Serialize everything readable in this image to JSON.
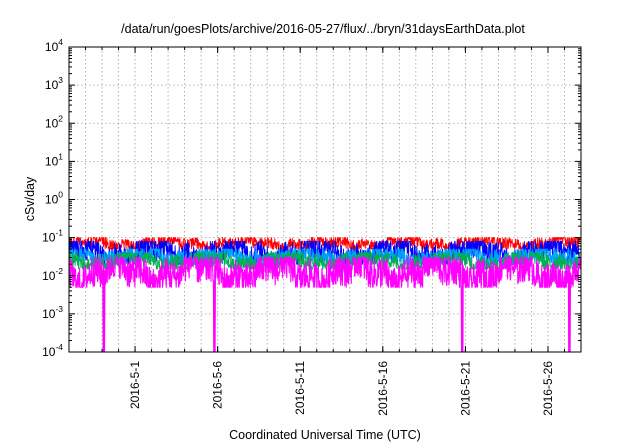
{
  "chart_data": {
    "type": "line",
    "title": "/data/run/goesPlots/archive/2016-05-27/flux/../bryn/31daysEarthData.plot",
    "xlabel": "Coordinated Universal Time (UTC)",
    "ylabel": "cSv/day",
    "yscale": "log",
    "ylim": [
      0.0001,
      10000
    ],
    "y_ticks": [
      {
        "base": "10",
        "exp": "-4",
        "value": 0.0001
      },
      {
        "base": "10",
        "exp": "-3",
        "value": 0.001
      },
      {
        "base": "10",
        "exp": "-2",
        "value": 0.01
      },
      {
        "base": "10",
        "exp": "-1",
        "value": 0.1
      },
      {
        "base": "10",
        "exp": "0",
        "value": 1
      },
      {
        "base": "10",
        "exp": "1",
        "value": 10
      },
      {
        "base": "10",
        "exp": "2",
        "value": 100
      },
      {
        "base": "10",
        "exp": "3",
        "value": 1000
      },
      {
        "base": "10",
        "exp": "4",
        "value": 10000
      }
    ],
    "xlim": [
      "2016-04-27",
      "2016-05-28"
    ],
    "x_ticks": [
      {
        "label": "2016-5-1",
        "date": "2016-05-01"
      },
      {
        "label": "2016-5-6",
        "date": "2016-05-06"
      },
      {
        "label": "2016-5-11",
        "date": "2016-05-11"
      },
      {
        "label": "2016-5-16",
        "date": "2016-05-16"
      },
      {
        "label": "2016-5-21",
        "date": "2016-05-21"
      },
      {
        "label": "2016-5-26",
        "date": "2016-05-26"
      }
    ],
    "grid": true,
    "legend": "none",
    "series": [
      {
        "color": "#ff0000",
        "typical_range": [
          0.05,
          0.1
        ]
      },
      {
        "color": "#0000ff",
        "typical_range": [
          0.02,
          0.08
        ]
      },
      {
        "color": "#00a0ff",
        "typical_range": [
          0.02,
          0.05
        ]
      },
      {
        "color": "#00b050",
        "typical_range": [
          0.015,
          0.04
        ]
      },
      {
        "color": "#ff00ff",
        "typical_range": [
          0.005,
          0.03
        ],
        "dropouts": [
          {
            "date": "2016-04-29.1",
            "min": 0.0001
          },
          {
            "date": "2016-05-05.8",
            "min": 0.0001
          },
          {
            "date": "2016-05-20.8",
            "min": 0.0001
          },
          {
            "date": "2016-05-27.3",
            "min": 0.0001
          }
        ]
      }
    ]
  }
}
